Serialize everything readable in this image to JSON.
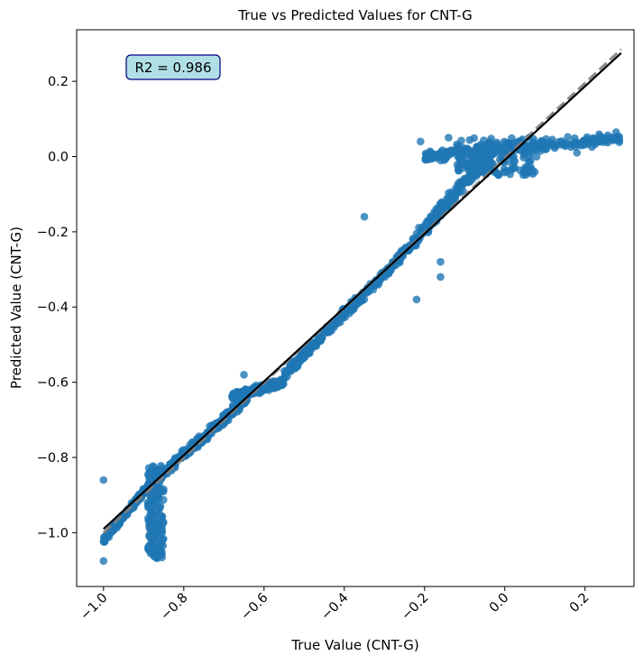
{
  "chart_data": {
    "type": "scatter",
    "title": "True vs Predicted Values for CNT-G",
    "xlabel": "True Value (CNT-G)",
    "ylabel": "Predicted Value (CNT-G)",
    "xlim": [
      -1.067,
      0.322
    ],
    "ylim": [
      -1.143,
      0.337
    ],
    "x_ticks": [
      -1.0,
      -0.8,
      -0.6,
      -0.4,
      -0.2,
      0.0,
      0.2
    ],
    "x_tick_labels": [
      "−1.0",
      "−0.8",
      "−0.6",
      "−0.4",
      "−0.2",
      "0.0",
      "0.2"
    ],
    "x_tick_rotation": 45,
    "y_ticks": [
      -1.0,
      -0.8,
      -0.6,
      -0.4,
      -0.2,
      0.0,
      0.2
    ],
    "y_tick_labels": [
      "−1.0",
      "−0.8",
      "−0.6",
      "−0.4",
      "−0.2",
      "0.0",
      "0.2"
    ],
    "annotation": "R2 = 0.986",
    "grid": false,
    "colors": {
      "points": "#1f77b4",
      "fit_line": "#000000",
      "identity_line": "#808080",
      "annotation_bg": "#b0e0e6",
      "annotation_border": "#000080"
    },
    "series": [
      {
        "style": "points",
        "segments": [
          {
            "x": [
              -1.0,
              -0.86
            ],
            "y": [
              -1.02,
              -0.84
            ],
            "spread": 0.012
          },
          {
            "x": [
              -0.86,
              -0.64
            ],
            "y": [
              -0.85,
              -0.64
            ],
            "spread": 0.018
          },
          {
            "x": [
              -0.68,
              -0.55
            ],
            "y": [
              -0.64,
              -0.6
            ],
            "spread": 0.015
          },
          {
            "x": [
              -0.55,
              -0.27
            ],
            "y": [
              -0.58,
              -0.28
            ],
            "spread": 0.02
          },
          {
            "x": [
              -0.27,
              -0.02
            ],
            "y": [
              -0.28,
              0.03
            ],
            "spread": 0.03
          },
          {
            "x": [
              -0.2,
              0.29
            ],
            "y": [
              0.0,
              0.05
            ],
            "spread": 0.02
          }
        ],
        "clusters": [
          {
            "x": [
              -0.89,
              -0.85
            ],
            "y": [
              -1.07,
              -0.82
            ]
          },
          {
            "x": [
              -0.12,
              0.08
            ],
            "y": [
              -0.05,
              0.05
            ]
          }
        ],
        "points": [
          {
            "x": -1.0,
            "y": -0.86
          },
          {
            "x": -1.0,
            "y": -1.075
          },
          {
            "x": -0.65,
            "y": -0.58
          },
          {
            "x": -0.35,
            "y": -0.16
          },
          {
            "x": -0.22,
            "y": -0.38
          },
          {
            "x": -0.16,
            "y": -0.32
          },
          {
            "x": -0.16,
            "y": -0.28
          },
          {
            "x": -0.21,
            "y": 0.04
          },
          {
            "x": -0.14,
            "y": 0.05
          },
          {
            "x": 0.0,
            "y": 0.0
          },
          {
            "x": 0.18,
            "y": 0.01
          },
          {
            "x": 0.06,
            "y": 0.05
          }
        ]
      },
      {
        "style": "fit-line",
        "x": [
          -1.0,
          0.29
        ],
        "y": [
          -0.99,
          0.275
        ]
      },
      {
        "style": "identity-line",
        "x": [
          -1.0,
          0.29
        ],
        "y": [
          -1.0,
          0.285
        ]
      }
    ]
  }
}
